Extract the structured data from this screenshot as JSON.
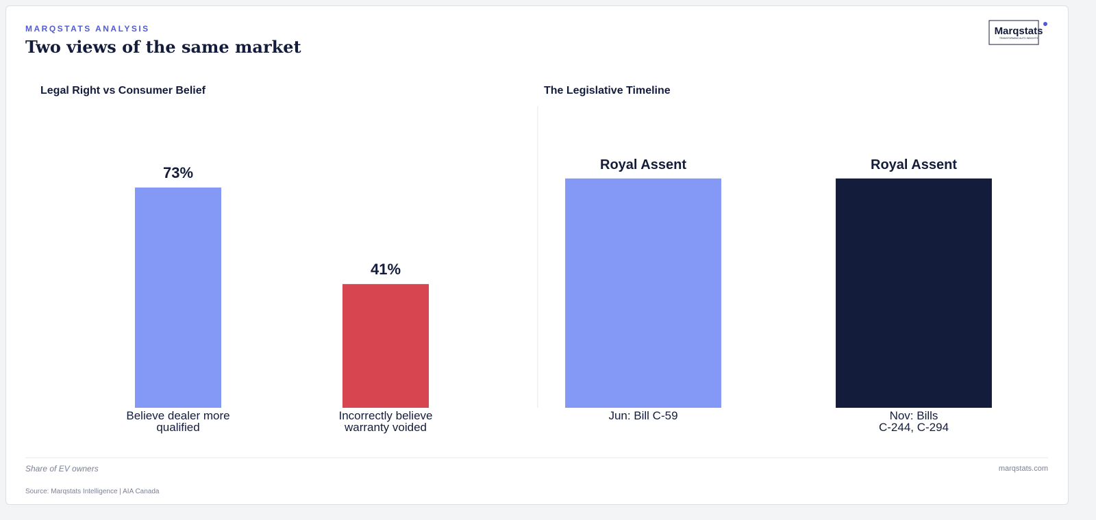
{
  "header": {
    "eyebrow": "MARQSTATS ANALYSIS",
    "title": "Two views of the same market"
  },
  "logo": {
    "name": "Marqstats",
    "tagline": "TRANSFORMING AUTO INSIGHTS"
  },
  "chart_data": [
    {
      "type": "bar",
      "title": "Legal Right vs Consumer Belief",
      "categories": [
        "Believe dealer more\nqualified",
        "Incorrectly believe\nwarranty voided"
      ],
      "values": [
        73,
        41
      ],
      "value_labels": [
        "73%",
        "41%"
      ],
      "colors": [
        "#8399f5",
        "#d64550"
      ],
      "ylim": [
        0,
        100
      ]
    },
    {
      "type": "bar",
      "title": "The Legislative Timeline",
      "categories": [
        "Jun: Bill C-59",
        "Nov: Bills\nC-244, C-294"
      ],
      "values": [
        76,
        76
      ],
      "annotations": [
        "Royal Assent",
        "Royal Assent"
      ],
      "colors": [
        "#8399f5",
        "#141c3b"
      ],
      "ylim": [
        0,
        100
      ]
    }
  ],
  "footer": {
    "note": "Share of EV owners",
    "site": "marqstats.com",
    "source": "Source: Marqstats Intelligence | AIA Canada"
  }
}
